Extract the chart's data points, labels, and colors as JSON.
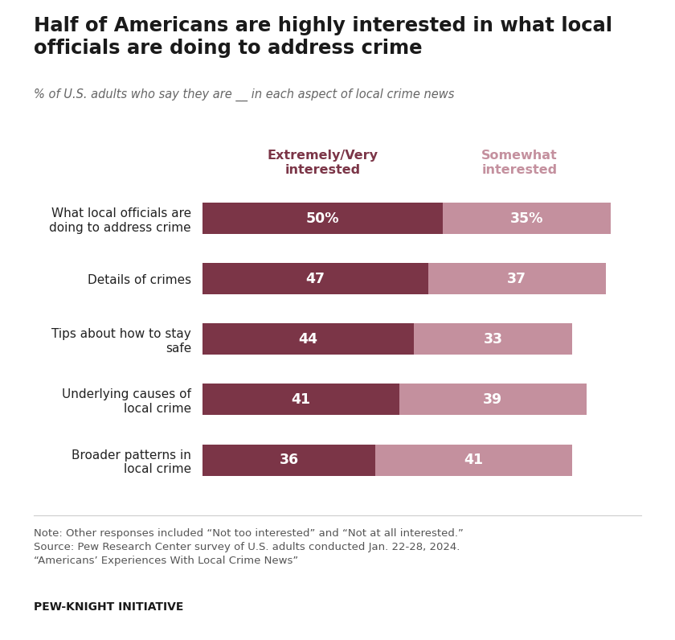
{
  "title": "Half of Americans are highly interested in what local\nofficials are doing to address crime",
  "subtitle_parts": [
    {
      "text": "% of U.S. adults who say they are ",
      "style": "italic",
      "color": "#666666"
    },
    {
      "text": "__ ",
      "style": "italic",
      "color": "#666666"
    },
    {
      "text": "in each aspect of local crime news",
      "style": "italic",
      "color": "#666666"
    }
  ],
  "subtitle": "% of U.S. adults who say they are __ in each aspect of local crime news",
  "categories": [
    "What local officials are\ndoing to address crime",
    "Details of crimes",
    "Tips about how to stay\nsafe",
    "Underlying causes of\nlocal crime",
    "Broader patterns in\nlocal crime"
  ],
  "extremely_very": [
    50,
    47,
    44,
    41,
    36
  ],
  "somewhat": [
    35,
    37,
    33,
    39,
    41
  ],
  "extremely_very_labels": [
    "50%",
    "47",
    "44",
    "41",
    "36"
  ],
  "somewhat_labels": [
    "35%",
    "37",
    "33",
    "39",
    "41"
  ],
  "color_dark": "#7B3547",
  "color_light": "#C4909E",
  "legend_label_dark": "Extremely/Very\ninterested",
  "legend_label_light": "Somewhat\ninterested",
  "note_text": "Note: Other responses included “Not too interested” and “Not at all interested.”\nSource: Pew Research Center survey of U.S. adults conducted Jan. 22-28, 2024.\n“Americans’ Experiences With Local Crime News”",
  "footer_text": "PEW-KNIGHT INITIATIVE",
  "background_color": "#FFFFFF",
  "bar_height": 0.52,
  "xlim": [
    0,
    90
  ],
  "figsize": [
    8.4,
    7.96
  ],
  "dpi": 100
}
